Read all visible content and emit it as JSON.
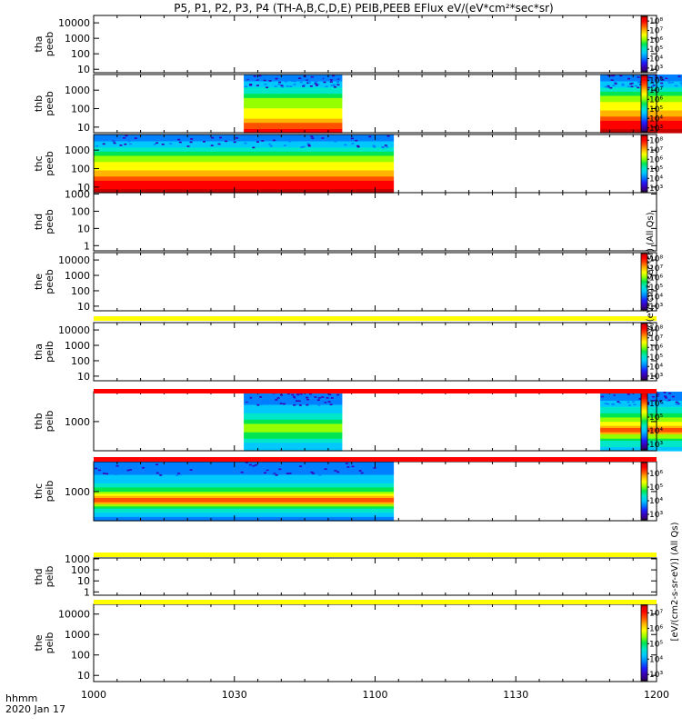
{
  "title": "P5, P1, P2, P3, P4 (TH-A,B,C,D,E) PEIB,PEEB EFlux eV/(eV*cm²*sec*sr)",
  "time_axis": {
    "label_top": "hhmm",
    "label_bottom": "2020 Jan 17",
    "ticks": [
      "1000",
      "1030",
      "1100",
      "1130",
      "1200"
    ],
    "range_minutes": [
      0,
      120
    ]
  },
  "colors": {
    "spectrum": [
      "#2b0053",
      "#3a00b4",
      "#1e1eff",
      "#0080ff",
      "#00c8ff",
      "#00e6c8",
      "#00e650",
      "#96ff00",
      "#ffff00",
      "#ffb400",
      "#ff5000",
      "#ff0000",
      "#c80000"
    ],
    "gap_yellow": "#ffff00",
    "gap_red": "#ff0000"
  },
  "side_labels": {
    "eflux_eV": "eV/(eV*cm²*sec*sr) (All Qs)",
    "eflux_cm2": "[eV/(cm2-s-sr-eV)] (All Qs)"
  },
  "chart_data": [
    {
      "type": "heatmap",
      "name": "tha peeb",
      "ylabel": [
        "tha",
        "peeb"
      ],
      "ytick_labels": [
        "10000",
        "1000",
        "100",
        "10"
      ],
      "yticks": [
        10000,
        1000,
        100,
        10
      ],
      "yrange": [
        6,
        30000
      ],
      "intervals": [],
      "colorbar": {
        "labels": [
          "10⁸",
          "10⁷",
          "10⁶",
          "10⁵",
          "10⁴",
          "10³"
        ],
        "exps": [
          8,
          7,
          6,
          5,
          4,
          3
        ],
        "range_exp": [
          2.6,
          8.5
        ]
      }
    },
    {
      "type": "heatmap",
      "name": "thb peeb",
      "ylabel": [
        "thb",
        "peeb"
      ],
      "ytick_labels": [
        "1000",
        "100",
        "10"
      ],
      "yticks": [
        1000,
        100,
        10
      ],
      "yrange": [
        5,
        7000
      ],
      "intervals": [
        {
          "start_min": 32,
          "end_min": 53,
          "profile": [
            [
              5,
              11
            ],
            [
              12,
              10
            ],
            [
              30,
              8.5
            ],
            [
              100,
              7.5
            ],
            [
              400,
              6.5
            ],
            [
              1500,
              4.5
            ],
            [
              7000,
              2.5
            ]
          ]
        },
        {
          "start_min": 108,
          "end_min": 128,
          "profile": [
            [
              5,
              12
            ],
            [
              15,
              11
            ],
            [
              40,
              9.5
            ],
            [
              150,
              8
            ],
            [
              500,
              6.5
            ],
            [
              1500,
              4.5
            ],
            [
              7000,
              2.5
            ]
          ]
        }
      ],
      "colorbar": {
        "labels": [
          "10⁸",
          "10⁷",
          "10⁶",
          "10⁵",
          "10⁴",
          "10³"
        ],
        "exps": [
          8,
          7,
          6,
          5,
          4,
          3
        ],
        "range_exp": [
          2.6,
          8.5
        ]
      }
    },
    {
      "type": "heatmap",
      "name": "thc peeb",
      "ylabel": [
        "thc",
        "peeb"
      ],
      "ytick_labels": [
        "1000",
        "100",
        "10"
      ],
      "yticks": [
        1000,
        100,
        10
      ],
      "yrange": [
        5,
        7000
      ],
      "intervals": [
        {
          "start_min": 0,
          "end_min": 64,
          "profile": [
            [
              5,
              12
            ],
            [
              15,
              11
            ],
            [
              40,
              9.5
            ],
            [
              150,
              8
            ],
            [
              500,
              6.5
            ],
            [
              1500,
              4.5
            ],
            [
              7000,
              2.5
            ]
          ]
        }
      ],
      "colorbar": {
        "labels": [
          "10⁸",
          "10⁷",
          "10⁶",
          "10⁵",
          "10⁴",
          "10³"
        ],
        "exps": [
          8,
          7,
          6,
          5,
          4,
          3
        ],
        "range_exp": [
          2.6,
          8.5
        ]
      }
    },
    {
      "type": "heatmap",
      "name": "thd peeb",
      "ylabel": [
        "thd",
        "peeb"
      ],
      "ytick_labels": [
        "1000",
        "100",
        "10",
        "1"
      ],
      "yticks": [
        1000,
        100,
        10,
        1
      ],
      "yrange": [
        0.5,
        1200
      ],
      "intervals": [],
      "colorbar": null
    },
    {
      "type": "heatmap",
      "name": "the peeb",
      "ylabel": [
        "the",
        "peeb"
      ],
      "ytick_labels": [
        "10000",
        "1000",
        "100",
        "10"
      ],
      "yticks": [
        10000,
        1000,
        100,
        10
      ],
      "yrange": [
        5,
        30000
      ],
      "intervals": [],
      "colorbar": {
        "labels": [
          "10⁸",
          "10⁷",
          "10⁶",
          "10⁵",
          "10⁴",
          "10³"
        ],
        "exps": [
          8,
          7,
          6,
          5,
          4,
          3
        ],
        "range_exp": [
          2.6,
          8.5
        ]
      },
      "gap_below": "yellow"
    },
    {
      "type": "heatmap",
      "name": "tha peib",
      "ylabel": [
        "tha",
        "peib"
      ],
      "ytick_labels": [
        "10000",
        "1000",
        "100",
        "10"
      ],
      "yticks": [
        10000,
        1000,
        100,
        10
      ],
      "yrange": [
        5,
        30000
      ],
      "intervals": [],
      "colorbar": {
        "labels": [
          "10⁸",
          "10⁷",
          "10⁶",
          "10⁵",
          "10⁴",
          "10³"
        ],
        "exps": [
          8,
          7,
          6,
          5,
          4,
          3
        ],
        "range_exp": [
          2.6,
          8.5
        ]
      },
      "gap_below": "red"
    },
    {
      "type": "heatmap",
      "name": "thb peib",
      "ylabel": [
        "thb",
        "peib"
      ],
      "ytick_labels": [
        "1000"
      ],
      "yticks": [
        1000
      ],
      "yrange": [
        150,
        7000
      ],
      "intervals": [
        {
          "start_min": 32,
          "end_min": 53,
          "profile": [
            [
              150,
              3.5
            ],
            [
              250,
              4.5
            ],
            [
              400,
              6
            ],
            [
              700,
              7
            ],
            [
              1000,
              6
            ],
            [
              1500,
              5
            ],
            [
              3000,
              3.5
            ],
            [
              7000,
              2.5
            ]
          ]
        },
        {
          "start_min": 108,
          "end_min": 128,
          "profile": [
            [
              150,
              3.5
            ],
            [
              250,
              5
            ],
            [
              400,
              7
            ],
            [
              600,
              10.5
            ],
            [
              900,
              8
            ],
            [
              1500,
              6
            ],
            [
              3000,
              4
            ],
            [
              7000,
              2.5
            ]
          ]
        }
      ],
      "colorbar": {
        "labels": [
          "10⁶",
          "10⁵",
          "10⁴",
          "10³"
        ],
        "exps": [
          6,
          5,
          4,
          3
        ],
        "range_exp": [
          2.6,
          6.8
        ]
      },
      "gap_below": "red"
    },
    {
      "type": "heatmap",
      "name": "thc peib",
      "ylabel": [
        "thc",
        "peib"
      ],
      "ytick_labels": [
        "1000"
      ],
      "yticks": [
        1000
      ],
      "yrange": [
        150,
        7000
      ],
      "intervals": [
        {
          "start_min": 0,
          "end_min": 64,
          "profile": [
            [
              150,
              3
            ],
            [
              250,
              4
            ],
            [
              400,
              6.5
            ],
            [
              550,
              10.5
            ],
            [
              800,
              8
            ],
            [
              1200,
              6
            ],
            [
              2000,
              4
            ],
            [
              7000,
              2.5
            ]
          ]
        }
      ],
      "colorbar": {
        "labels": [
          "10⁶",
          "10⁵",
          "10⁴",
          "10³"
        ],
        "exps": [
          6,
          5,
          4,
          3
        ],
        "range_exp": [
          2.6,
          6.8
        ]
      },
      "gap_below": "yellow"
    },
    {
      "type": "heatmap",
      "name": "thd peib",
      "ylabel": [
        "thd",
        "peib"
      ],
      "ytick_labels": [
        "1000",
        "100",
        "10",
        "1"
      ],
      "yticks": [
        1000,
        100,
        10,
        1
      ],
      "yrange": [
        0.5,
        1200
      ],
      "intervals": [],
      "colorbar": null,
      "gap_below": "yellow"
    },
    {
      "type": "heatmap",
      "name": "the peib",
      "ylabel": [
        "the",
        "peib"
      ],
      "ytick_labels": [
        "10000",
        "1000",
        "100",
        "10"
      ],
      "yticks": [
        10000,
        1000,
        100,
        10
      ],
      "yrange": [
        5,
        30000
      ],
      "intervals": [],
      "colorbar": {
        "labels": [
          "10⁷",
          "10⁶",
          "10⁵",
          "10⁴",
          "10³"
        ],
        "exps": [
          7,
          6,
          5,
          4,
          3
        ],
        "range_exp": [
          2.6,
          7.5
        ]
      }
    }
  ]
}
